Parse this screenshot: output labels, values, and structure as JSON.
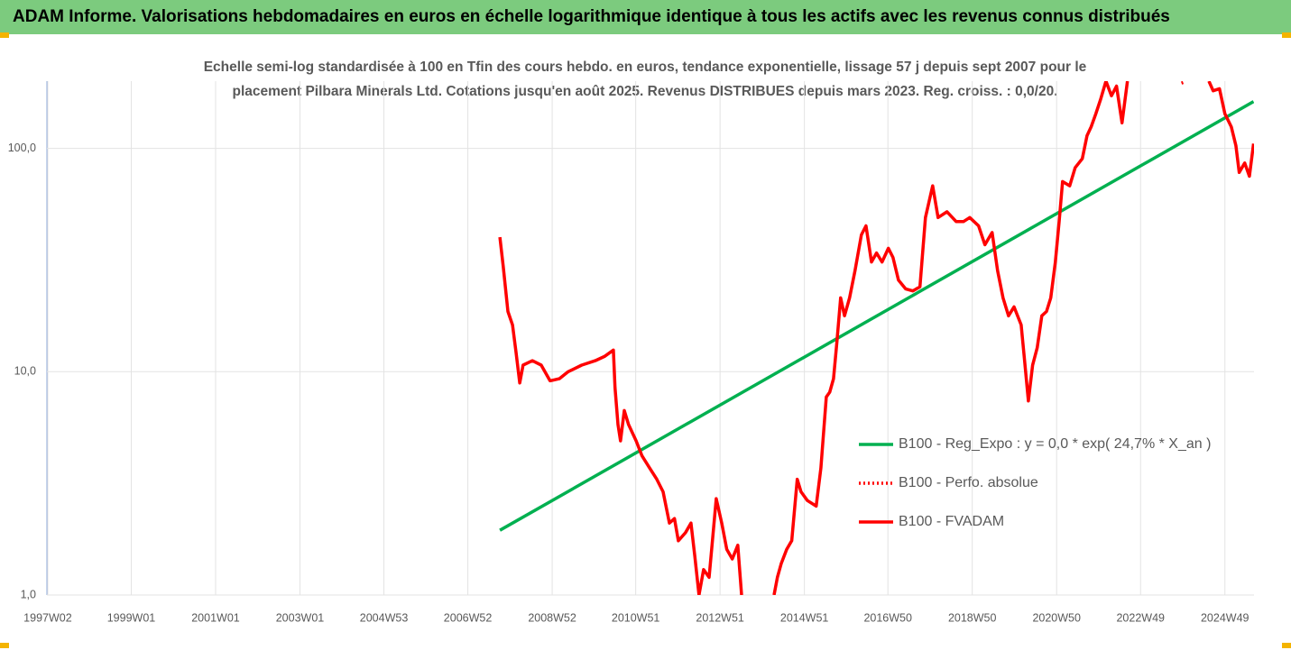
{
  "header": {
    "title": "ADAM Informe. Valorisations hebdomadaires en euros en échelle logarithmique identique à tous les actifs avec les revenus connus distribués"
  },
  "chart_data": {
    "type": "line",
    "title_lines": [
      "Echelle semi-log standardisée à 100 en Tfin des cours hebdo. en euros, tendance exponentielle, lissage 57 j depuis sept 2007 pour le",
      "placement Pilbara Minerals Ltd. Cotations jusqu'en août 2025. Revenus DISTRIBUES depuis mars 2023. Reg. croiss. : 0,0/20."
    ],
    "log_y": true,
    "grid": true,
    "legend": "right",
    "xlim": [
      1997.0,
      2025.62
    ],
    "xticks": [
      {
        "value": 1997.02,
        "label": "1997W02"
      },
      {
        "value": 1999.0,
        "label": "1999W01"
      },
      {
        "value": 2001.0,
        "label": "2001W01"
      },
      {
        "value": 2003.0,
        "label": "2003W01"
      },
      {
        "value": 2004.99,
        "label": "2004W53"
      },
      {
        "value": 2006.98,
        "label": "2006W52"
      },
      {
        "value": 2008.98,
        "label": "2008W52"
      },
      {
        "value": 2010.96,
        "label": "2010W51"
      },
      {
        "value": 2012.96,
        "label": "2012W51"
      },
      {
        "value": 2014.96,
        "label": "2014W51"
      },
      {
        "value": 2016.94,
        "label": "2016W50"
      },
      {
        "value": 2018.94,
        "label": "2018W50"
      },
      {
        "value": 2020.94,
        "label": "2020W50"
      },
      {
        "value": 2022.93,
        "label": "2022W49"
      },
      {
        "value": 2024.93,
        "label": "2024W49"
      }
    ],
    "ylim": [
      1,
      200
    ],
    "yticks": [
      {
        "value": 1,
        "label": "1,0"
      },
      {
        "value": 10,
        "label": "10,0"
      },
      {
        "value": 100,
        "label": "100,0"
      }
    ],
    "series": [
      {
        "name": "B100 - Reg_Expo : y = 0,0 * exp( 24,7% *  X_an )",
        "color": "#00b050",
        "dashed": false,
        "x": [
          2007.74,
          2025.61
        ],
        "values": [
          1.95,
          162
        ]
      },
      {
        "name": "B100 - Perfo. absolue",
        "color": "#ff0000",
        "dashed": true,
        "x": [
          2023.9,
          2024.0
        ],
        "values": [
          196,
          199
        ]
      },
      {
        "name": "B100 - FVADAM",
        "color": "#ff0000",
        "dashed": false,
        "x": [
          2007.74,
          2007.82,
          2007.93,
          2008.04,
          2008.12,
          2008.21,
          2008.29,
          2008.51,
          2008.72,
          2008.93,
          2009.15,
          2009.36,
          2009.68,
          2010.0,
          2010.22,
          2010.43,
          2010.47,
          2010.54,
          2010.6,
          2010.69,
          2010.79,
          2010.97,
          2011.11,
          2011.29,
          2011.46,
          2011.61,
          2011.76,
          2011.88,
          2011.97,
          2012.14,
          2012.27,
          2012.36,
          2012.46,
          2012.57,
          2012.7,
          2012.78,
          2012.87,
          2013.0,
          2013.12,
          2013.25,
          2013.38,
          2013.47,
          2013.9,
          2014.24,
          2014.32,
          2014.41,
          2014.54,
          2014.66,
          2014.79,
          2014.88,
          2015.03,
          2015.24,
          2015.35,
          2015.48,
          2015.56,
          2015.65,
          2015.73,
          2015.82,
          2015.91,
          2016.03,
          2016.16,
          2016.31,
          2016.42,
          2016.55,
          2016.67,
          2016.8,
          2016.95,
          2017.06,
          2017.19,
          2017.36,
          2017.53,
          2017.7,
          2017.83,
          2018.0,
          2018.13,
          2018.34,
          2018.56,
          2018.73,
          2018.88,
          2019.09,
          2019.24,
          2019.41,
          2019.54,
          2019.67,
          2019.8,
          2019.93,
          2020.1,
          2020.18,
          2020.27,
          2020.37,
          2020.48,
          2020.59,
          2020.7,
          2020.8,
          2020.91,
          2021.0,
          2021.08,
          2021.25,
          2021.38,
          2021.55,
          2021.66,
          2021.76,
          2021.87,
          2021.98,
          2022.11,
          2022.24,
          2022.36,
          2022.49,
          2022.62,
          2022.9,
          2024.55,
          2024.65,
          2024.8,
          2024.93,
          2025.08,
          2025.19,
          2025.27,
          2025.4,
          2025.51,
          2025.61
        ],
        "values": [
          40,
          29.6,
          18.6,
          16.2,
          12.3,
          8.9,
          10.7,
          11.2,
          10.7,
          9.1,
          9.3,
          10,
          10.7,
          11.2,
          11.7,
          12.5,
          8.5,
          5.8,
          4.9,
          6.7,
          5.8,
          4.9,
          4.2,
          3.7,
          3.3,
          2.9,
          2.1,
          2.2,
          1.75,
          1.9,
          2.1,
          1.5,
          1.0,
          1.3,
          1.2,
          1.75,
          2.7,
          2.1,
          1.6,
          1.45,
          1.67,
          1.0,
          null,
          1.0,
          1.2,
          1.38,
          1.6,
          1.75,
          3.3,
          2.9,
          2.65,
          2.5,
          3.7,
          7.7,
          8.1,
          9.3,
          13.5,
          21.4,
          17.8,
          21.4,
          28.3,
          41,
          45,
          31,
          34,
          31,
          35.7,
          32.5,
          25.7,
          23.5,
          23,
          24,
          49,
          68,
          49,
          52,
          47,
          47,
          49,
          45,
          37,
          42,
          28.3,
          21.4,
          17.8,
          19.5,
          16.2,
          11.2,
          7.4,
          10.7,
          12.8,
          17.8,
          18.6,
          21.4,
          31,
          47,
          71,
          68,
          82,
          90,
          114,
          125,
          143,
          165,
          200,
          172,
          190,
          130,
          200,
          null,
          200,
          181,
          185,
          143,
          125,
          103,
          78,
          86,
          75,
          105
        ]
      }
    ]
  }
}
